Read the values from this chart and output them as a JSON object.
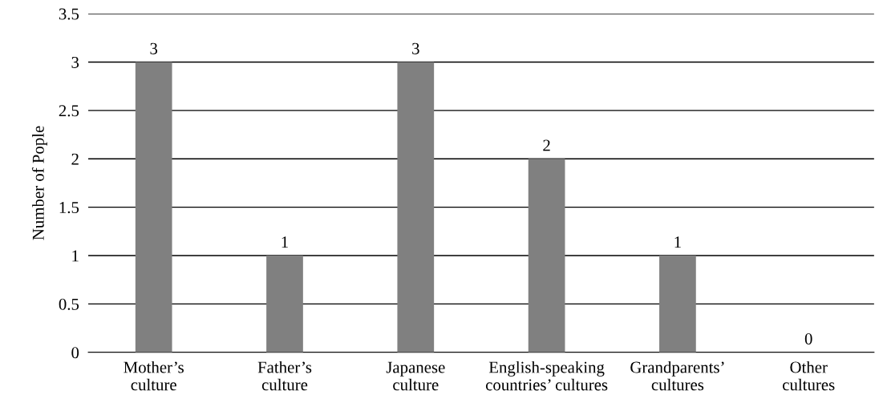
{
  "chart_data": {
    "type": "bar",
    "ylabel": "Number of Pople",
    "categories": [
      "Mother’s\nculture",
      "Father’s\nculture",
      "Japanese\nculture",
      "English-speaking\ncountries’ cultures",
      "Grandparents’\ncultures",
      "Other\ncultures"
    ],
    "values": [
      3,
      1,
      3,
      2,
      1,
      0
    ],
    "color": "#808080",
    "ylim": [
      0,
      3.5
    ],
    "yticks": [
      0,
      0.5,
      1,
      1.5,
      2,
      2.5,
      3,
      3.5
    ],
    "grid": "y",
    "data_labels": true
  }
}
